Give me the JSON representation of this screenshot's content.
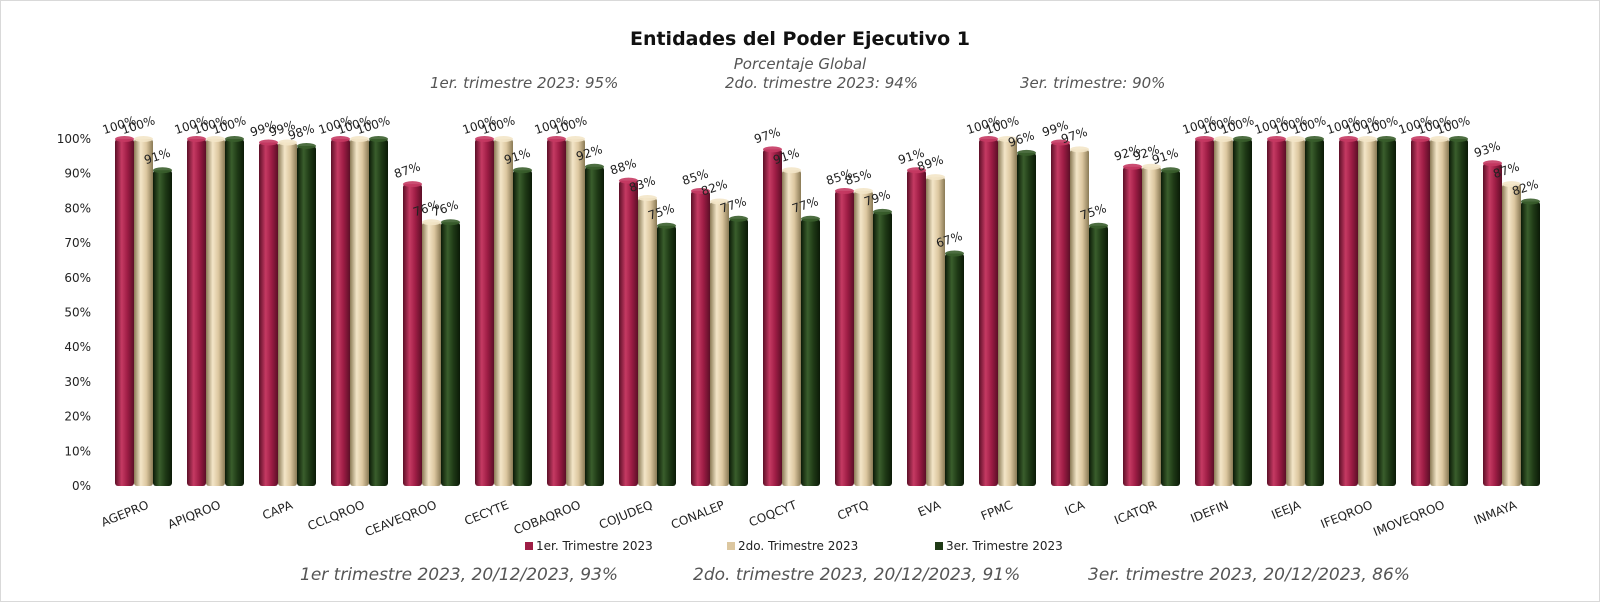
{
  "chart_data": {
    "type": "bar",
    "title": "Entidades del Poder Ejecutivo 1",
    "subtitle": "Porcentaje Global",
    "top_notes": [
      "1er. trimestre 2023: 95%",
      "2do. trimestre 2023: 94%",
      "3er. trimestre: 90%"
    ],
    "bottom_notes": [
      "1er trimestre  2023,  20/12/2023, 93%",
      "2do. trimestre 2023, 20/12/2023, 91%",
      "3er. trimestre 2023, 20/12/2023, 86%"
    ],
    "categories": [
      "AGEPRO",
      "APIQROO",
      "CAPA",
      "CCLQROO",
      "CEAVEQROO",
      "CECYTE",
      "COBAQROO",
      "COJUDEQ",
      "CONALEP",
      "COQCYT",
      "CPTQ",
      "EVA",
      "FPMC",
      "ICA",
      "ICATQR",
      "IDEFIN",
      "IEEJA",
      "IFEQROO",
      "IMOVEQROO",
      "INMAYA"
    ],
    "series": [
      {
        "name": "1er. Trimestre 2023",
        "color": "#9e1d45",
        "values": [
          100,
          100,
          99,
          100,
          87,
          100,
          100,
          88,
          85,
          97,
          85,
          91,
          100,
          99,
          92,
          100,
          100,
          100,
          100,
          93
        ]
      },
      {
        "name": "2do. Trimestre 2023",
        "color": "#dcc7a0",
        "values": [
          100,
          100,
          99,
          100,
          76,
          100,
          100,
          83,
          82,
          91,
          85,
          89,
          100,
          97,
          92,
          100,
          100,
          100,
          100,
          87
        ]
      },
      {
        "name": "3er. Trimestre 2023",
        "color": "#1f3a16",
        "values": [
          91,
          100,
          98,
          100,
          76,
          91,
          92,
          75,
          77,
          77,
          79,
          67,
          96,
          75,
          91,
          100,
          100,
          100,
          100,
          82
        ]
      }
    ],
    "yticks": [
      "0%",
      "10%",
      "20%",
      "30%",
      "40%",
      "50%",
      "60%",
      "70%",
      "80%",
      "90%",
      "100%"
    ],
    "ylim": [
      0,
      100
    ],
    "value_suffix": "%",
    "grid": false,
    "legend_position": "bottom"
  }
}
